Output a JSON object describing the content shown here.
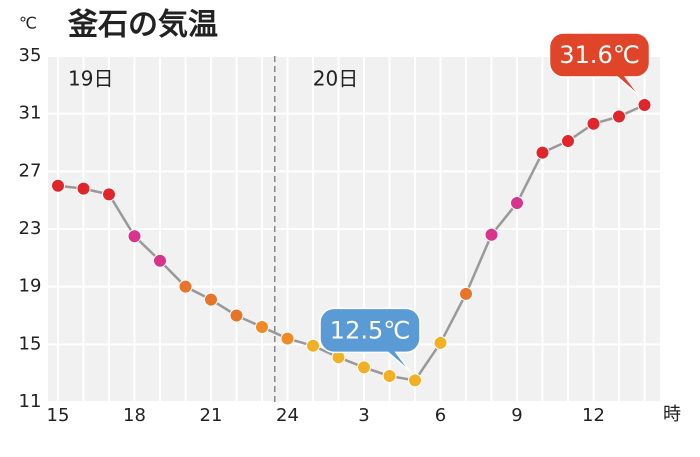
{
  "chart_data": {
    "type": "line",
    "title": "釜石の気温",
    "y_label": "℃",
    "x_label": "時",
    "day_labels": [
      "19日",
      "20日"
    ],
    "categories": [
      "15",
      null,
      null,
      "18",
      null,
      null,
      "21",
      null,
      null,
      "24",
      null,
      null,
      "3",
      null,
      null,
      "6",
      null,
      null,
      "9",
      null,
      null,
      "12",
      null,
      null
    ],
    "values": [
      26.0,
      25.8,
      25.4,
      22.5,
      20.8,
      19.0,
      18.1,
      17.0,
      16.2,
      15.4,
      14.9,
      14.1,
      13.4,
      12.8,
      12.5,
      15.1,
      18.5,
      22.6,
      24.8,
      28.3,
      29.1,
      30.3,
      30.8,
      31.6
    ],
    "value_labels": [
      null,
      null,
      null,
      null,
      null,
      null,
      null,
      null,
      null,
      null,
      null,
      null,
      null,
      null,
      "12.5℃",
      null,
      null,
      null,
      null,
      null,
      null,
      null,
      null,
      "31.6℃"
    ],
    "point_colors": [
      "#e0262b",
      "#e0262b",
      "#e0262b",
      "#d8348c",
      "#d8348c",
      "#e8742a",
      "#e8742a",
      "#e8742a",
      "#ef8a25",
      "#ef8a25",
      "#f2b125",
      "#f2b125",
      "#f2b125",
      "#f2b125",
      "#f2b125",
      "#f2b125",
      "#e8742a",
      "#d8348c",
      "#d8348c",
      "#e0262b",
      "#e0262b",
      "#e0262b",
      "#e0262b",
      "#e0262b"
    ],
    "line_color": "#999999",
    "label_colors": {
      "low": "#5b9bd5",
      "high": "#e0452a"
    },
    "ylim": [
      11,
      35
    ],
    "yticks": [
      11,
      15,
      19,
      23,
      27,
      31,
      35
    ],
    "grid": true
  }
}
